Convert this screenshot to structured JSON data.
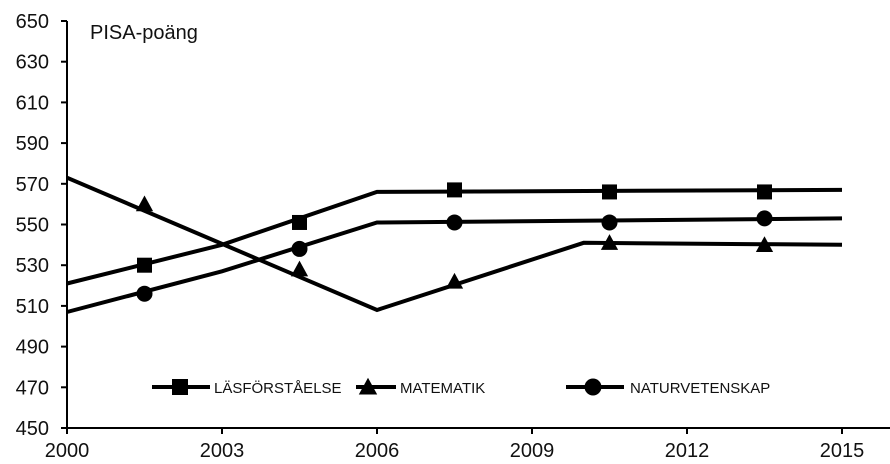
{
  "chart_data": {
    "type": "line",
    "ylabel": "PISA-poäng",
    "ylim": [
      450,
      650
    ],
    "yticks": [
      450,
      470,
      490,
      510,
      530,
      550,
      570,
      590,
      610,
      630,
      650
    ],
    "xlim": [
      2000,
      2015
    ],
    "xticks": [
      2000,
      2003,
      2006,
      2009,
      2012,
      2015
    ],
    "grid": false,
    "legend_placement": "bottom",
    "series": [
      {
        "name": "LÄSFÖRSTÅELSE",
        "marker": "square",
        "line_points": [
          [
            2000,
            521
          ],
          [
            2003,
            540
          ],
          [
            2006,
            566
          ],
          [
            2015,
            567
          ]
        ],
        "marker_points": [
          [
            2001.5,
            530
          ],
          [
            2004.5,
            551
          ],
          [
            2007.5,
            567
          ],
          [
            2010.5,
            566
          ],
          [
            2013.5,
            566
          ]
        ]
      },
      {
        "name": "MATEMATIK",
        "marker": "triangle",
        "line_points": [
          [
            2000,
            573
          ],
          [
            2006,
            508
          ],
          [
            2010,
            541
          ],
          [
            2015,
            540
          ]
        ],
        "marker_points": [
          [
            2001.5,
            560
          ],
          [
            2004.5,
            528
          ],
          [
            2007.5,
            522
          ],
          [
            2010.5,
            541
          ],
          [
            2013.5,
            540
          ]
        ]
      },
      {
        "name": "NATURVETENSKAP",
        "marker": "circle",
        "line_points": [
          [
            2000,
            507
          ],
          [
            2003,
            527
          ],
          [
            2006,
            551
          ],
          [
            2015,
            553
          ]
        ],
        "marker_points": [
          [
            2001.5,
            516
          ],
          [
            2004.5,
            538
          ],
          [
            2007.5,
            551
          ],
          [
            2010.5,
            551
          ],
          [
            2013.5,
            553
          ]
        ]
      }
    ]
  }
}
